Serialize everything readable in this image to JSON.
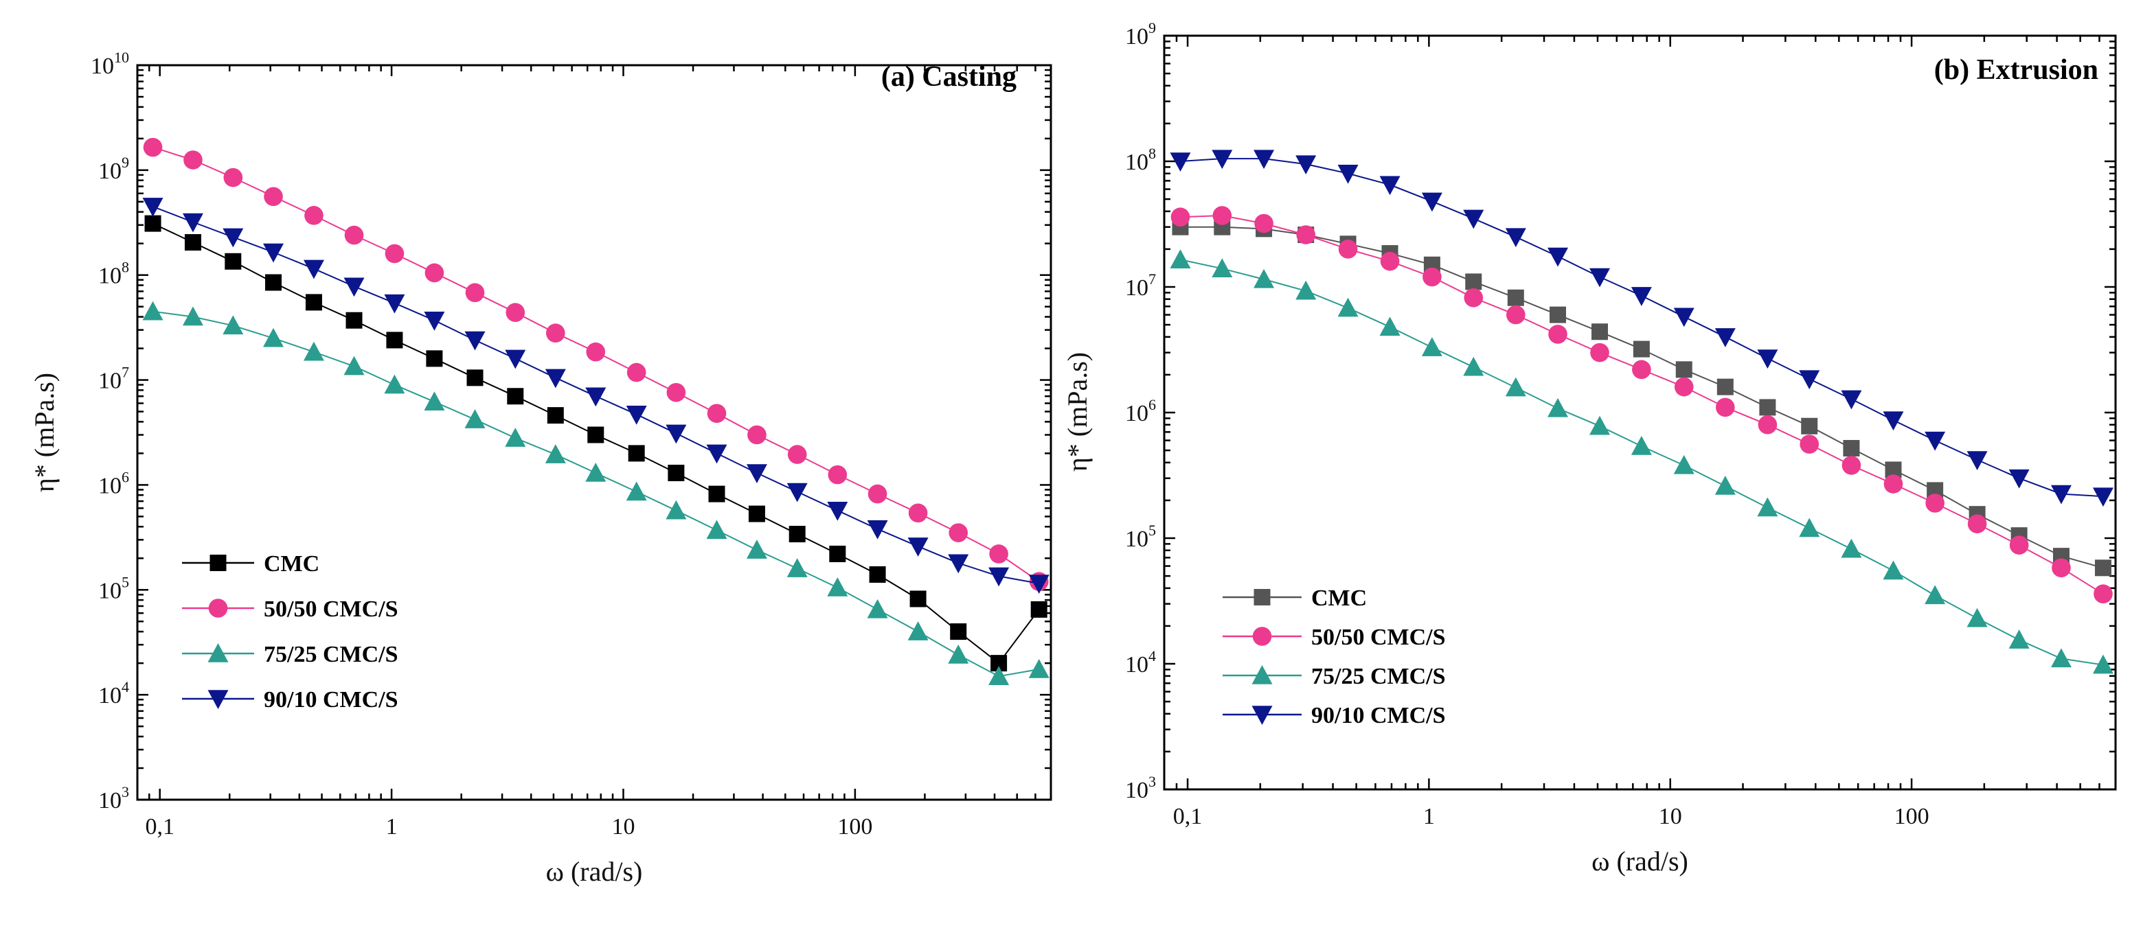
{
  "chart_data": [
    {
      "type": "line",
      "title": "(a) Casting",
      "xlabel": "ω (rad/s)",
      "ylabel": "η* (mPa.s)",
      "xscale": "log",
      "yscale": "log",
      "xlim": [
        0.08,
        700
      ],
      "ylim": [
        1000,
        10000000000
      ],
      "x_ticks": [
        {
          "v": 0.1,
          "label": "0,1"
        },
        {
          "v": 1,
          "label": "1"
        },
        {
          "v": 10,
          "label": "10"
        },
        {
          "v": 100,
          "label": "100"
        }
      ],
      "y_ticks": [
        {
          "v": 1000,
          "exp": "3"
        },
        {
          "v": 10000,
          "exp": "4"
        },
        {
          "v": 100000,
          "exp": "5"
        },
        {
          "v": 1000000,
          "exp": "6"
        },
        {
          "v": 10000000,
          "exp": "7"
        },
        {
          "v": 100000000,
          "exp": "8"
        },
        {
          "v": 1000000000,
          "exp": "9"
        },
        {
          "v": 10000000000,
          "exp": "10"
        }
      ],
      "legend_position": "lower-left",
      "x": [
        0.0933,
        0.139,
        0.207,
        0.309,
        0.462,
        0.689,
        1.03,
        1.53,
        2.29,
        3.42,
        5.1,
        7.6,
        11.4,
        16.9,
        25.3,
        37.7,
        56.3,
        84,
        125,
        187,
        279,
        417,
        622
      ],
      "series": [
        {
          "name": "CMC",
          "color": "#000000",
          "marker": "square",
          "values": [
            310000000,
            205000000,
            135000000,
            85000000,
            55000000,
            37000000,
            24000000,
            16000000,
            10500000,
            7000000,
            4600000,
            3000000,
            2000000,
            1300000,
            820000,
            530000,
            340000,
            220000,
            140000,
            82000,
            40000,
            20000,
            65000
          ]
        },
        {
          "name": "50/50 CMC/S",
          "color": "#ec3a8f",
          "marker": "circle",
          "values": [
            1650000000,
            1250000000,
            850000000,
            560000000,
            370000000,
            240000000,
            160000000,
            105000000,
            68000000,
            44000000,
            28000000,
            18500000,
            11800000,
            7600000,
            4800000,
            3000000,
            1950000,
            1250000,
            820000,
            540000,
            350000,
            220000,
            120000
          ]
        },
        {
          "name": "75/25 CMC/S",
          "color": "#2a9d8f",
          "marker": "triangle-up",
          "values": [
            45000000,
            40000000,
            33000000,
            25000000,
            18500000,
            13500000,
            9000000,
            6200000,
            4200000,
            2800000,
            1950000,
            1300000,
            860000,
            570000,
            370000,
            240000,
            160000,
            105000,
            65000,
            40000,
            24000,
            15000,
            17500
          ]
        },
        {
          "name": "90/10 CMC/S",
          "color": "#0b168c",
          "marker": "triangle-down",
          "values": [
            450000000,
            320000000,
            230000000,
            165000000,
            115000000,
            78000000,
            54000000,
            37000000,
            24000000,
            16000000,
            10500000,
            7000000,
            4700000,
            3100000,
            2000000,
            1300000,
            860000,
            570000,
            380000,
            260000,
            180000,
            135000,
            115000
          ]
        }
      ]
    },
    {
      "type": "line",
      "title": "(b) Extrusion",
      "xlabel": "ω (rad/s)",
      "ylabel": "η* (mPa.s)",
      "xscale": "log",
      "yscale": "log",
      "xlim": [
        0.08,
        700
      ],
      "ylim": [
        1000,
        1000000000
      ],
      "x_ticks": [
        {
          "v": 0.1,
          "label": "0,1"
        },
        {
          "v": 1,
          "label": "1"
        },
        {
          "v": 10,
          "label": "10"
        },
        {
          "v": 100,
          "label": "100"
        }
      ],
      "y_ticks": [
        {
          "v": 1000,
          "exp": "3"
        },
        {
          "v": 10000,
          "exp": "4"
        },
        {
          "v": 100000,
          "exp": "5"
        },
        {
          "v": 1000000,
          "exp": "6"
        },
        {
          "v": 10000000,
          "exp": "7"
        },
        {
          "v": 100000000,
          "exp": "8"
        },
        {
          "v": 1000000000,
          "exp": "9"
        }
      ],
      "legend_position": "lower-left",
      "x": [
        0.0933,
        0.139,
        0.207,
        0.309,
        0.462,
        0.689,
        1.03,
        1.53,
        2.29,
        3.42,
        5.1,
        7.6,
        11.4,
        16.9,
        25.3,
        37.7,
        56.3,
        84,
        125,
        187,
        279,
        417,
        622
      ],
      "series": [
        {
          "name": "CMC",
          "color": "#555555",
          "marker": "square",
          "values": [
            30000000,
            30000000,
            29000000,
            26000000,
            22000000,
            18500000,
            15000000,
            11000000,
            8200000,
            6000000,
            4400000,
            3200000,
            2200000,
            1600000,
            1100000,
            780000,
            520000,
            350000,
            240000,
            155000,
            105000,
            72000,
            58000
          ]
        },
        {
          "name": "50/50 CMC/S",
          "color": "#ec3a8f",
          "marker": "circle",
          "values": [
            36000000,
            37000000,
            32000000,
            26000000,
            20000000,
            16000000,
            12000000,
            8200000,
            6000000,
            4200000,
            3000000,
            2200000,
            1600000,
            1100000,
            800000,
            560000,
            380000,
            270000,
            190000,
            130000,
            88000,
            58000,
            36000
          ]
        },
        {
          "name": "75/25 CMC/S",
          "color": "#2a9d8f",
          "marker": "triangle-up",
          "values": [
            16500000,
            14000000,
            11500000,
            9300000,
            6800000,
            4800000,
            3300000,
            2300000,
            1580000,
            1080000,
            780000,
            540000,
            380000,
            260000,
            175000,
            120000,
            82000,
            55000,
            35000,
            23000,
            15500,
            11000,
            9800
          ]
        },
        {
          "name": "90/10 CMC/S",
          "color": "#0b168c",
          "marker": "triangle-down",
          "values": [
            100000000,
            105000000,
            105000000,
            95000000,
            80000000,
            65000000,
            48000000,
            35000000,
            25000000,
            17500000,
            12000000,
            8500000,
            5800000,
            4000000,
            2700000,
            1850000,
            1280000,
            870000,
            600000,
            420000,
            300000,
            225000,
            215000
          ]
        }
      ]
    }
  ]
}
